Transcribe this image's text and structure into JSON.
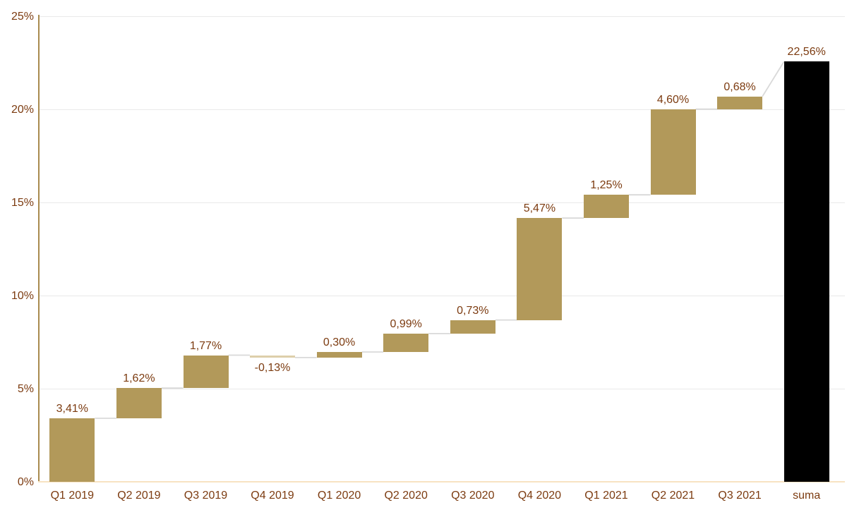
{
  "chart_data": {
    "type": "bar",
    "subtype": "waterfall",
    "title": "",
    "categories": [
      "Q1 2019",
      "Q2 2019",
      "Q3 2019",
      "Q4 2019",
      "Q1 2020",
      "Q2 2020",
      "Q3 2020",
      "Q4 2020",
      "Q1 2021",
      "Q2 2021",
      "Q3 2021",
      "suma"
    ],
    "values": [
      3.41,
      1.62,
      1.77,
      -0.13,
      0.3,
      0.99,
      0.73,
      5.47,
      1.25,
      4.6,
      0.68,
      22.56
    ],
    "value_labels": [
      "3,41%",
      "1,62%",
      "1,77%",
      "-0,13%",
      "0,30%",
      "0,99%",
      "0,73%",
      "5,47%",
      "1,25%",
      "4,60%",
      "0,68%",
      "22,56%"
    ],
    "is_total": [
      false,
      false,
      false,
      false,
      false,
      false,
      false,
      false,
      false,
      false,
      false,
      true
    ],
    "xlabel": "",
    "ylabel": "",
    "ylim": [
      0,
      25
    ],
    "ytick_values": [
      0,
      5,
      10,
      15,
      20,
      25
    ],
    "ytick_labels": [
      "0%",
      "5%",
      "10%",
      "15%",
      "20%",
      "25%"
    ],
    "grid": "horizontal",
    "legend": "none",
    "connectors": "between-bars, diagonal to total"
  },
  "colors": {
    "background": "#FFFFFF",
    "bar_positive": "#B2995A",
    "bar_negative": "#DDCFAA",
    "bar_total": "#000000",
    "label_text": "#7C3B10",
    "axis_text": "#7C3B10",
    "y_axis_line": "#A98B4F",
    "x_axis_line": "#F8E3C2",
    "gridline": "#E9E9E9",
    "connector": "#D9D9D9"
  }
}
